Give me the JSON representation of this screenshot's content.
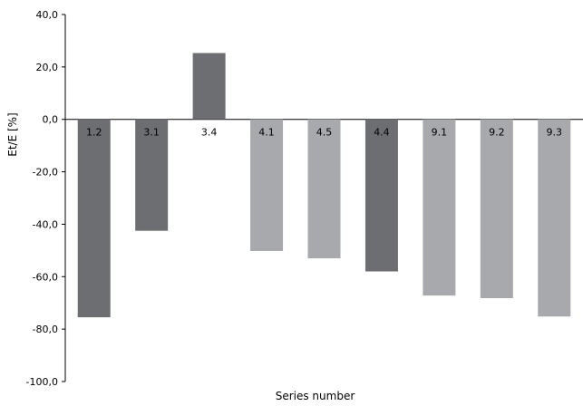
{
  "chart_data": {
    "type": "bar",
    "title": "",
    "xlabel": "Series number",
    "ylabel": "Et/E [%]",
    "categories": [
      "1.2",
      "3.1",
      "3.4",
      "4.1",
      "4.5",
      "4.4",
      "9.1",
      "9.2",
      "9.3"
    ],
    "values": [
      -75.5,
      -42.5,
      25.3,
      -50.2,
      -53.0,
      -58.0,
      -67.2,
      -68.2,
      -75.2
    ],
    "bar_colors": [
      "#6d6e71",
      "#6d6e71",
      "#6d6e71",
      "#a7a9ac",
      "#a7a9ac",
      "#6d6e71",
      "#a7a9ac",
      "#a7a9ac",
      "#a7a9ac"
    ],
    "ylim": [
      -100,
      40
    ],
    "yticks": [
      40,
      20,
      0,
      -20,
      -40,
      -60,
      -80,
      -100
    ],
    "ytick_labels": [
      "40,0",
      "20,0",
      "0,0",
      "-20,0",
      "-40,0",
      "-60,0",
      "-80,0",
      "-100,0"
    ],
    "grid": false,
    "legend": "none"
  }
}
